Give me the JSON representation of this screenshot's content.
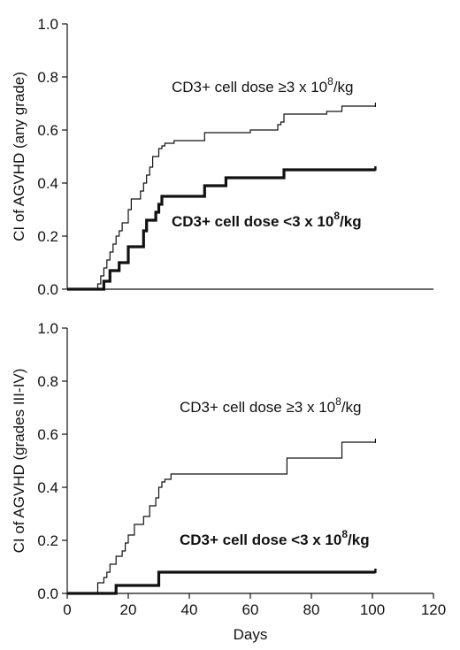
{
  "chart_data": [
    {
      "type": "line",
      "ylabel": "CI of AGVHD (any grade)",
      "xlabel": "",
      "xlim": [
        0,
        120
      ],
      "ylim": [
        0,
        1.0
      ],
      "y_ticks": [
        "0.0",
        "0.2",
        "0.4",
        "0.6",
        "0.8",
        "1.0"
      ],
      "x_ticks": [],
      "x_axis_visible": false,
      "series": [
        {
          "name": "CD3+ cell dose ≥3 x 10⁸/kg",
          "style": "thin",
          "x": [
            0,
            9,
            10,
            11,
            12,
            13,
            14,
            15,
            16,
            17,
            18,
            20,
            21,
            22,
            24,
            25,
            26,
            27,
            28,
            29,
            30,
            31,
            32,
            34,
            35,
            38,
            40,
            45,
            50,
            55,
            60,
            65,
            69,
            70,
            71,
            80,
            85,
            90,
            95,
            101
          ],
          "y": [
            0,
            0,
            0.02,
            0.05,
            0.08,
            0.11,
            0.14,
            0.17,
            0.2,
            0.22,
            0.25,
            0.3,
            0.34,
            0.34,
            0.37,
            0.4,
            0.43,
            0.46,
            0.5,
            0.5,
            0.53,
            0.54,
            0.55,
            0.55,
            0.56,
            0.56,
            0.56,
            0.59,
            0.59,
            0.59,
            0.6,
            0.6,
            0.62,
            0.63,
            0.66,
            0.66,
            0.67,
            0.69,
            0.69,
            0.69
          ]
        },
        {
          "name": "CD3+ cell dose <3 x 10⁸/kg",
          "style": "thick",
          "x": [
            0,
            11,
            12,
            14,
            15,
            17,
            18,
            20,
            22,
            25,
            26,
            29,
            30,
            31,
            33,
            34,
            45,
            52,
            70,
            71,
            101
          ],
          "y": [
            0,
            0,
            0.03,
            0.07,
            0.07,
            0.1,
            0.1,
            0.16,
            0.16,
            0.22,
            0.26,
            0.29,
            0.32,
            0.35,
            0.35,
            0.35,
            0.39,
            0.42,
            0.42,
            0.45,
            0.45
          ]
        }
      ],
      "annotations": [
        {
          "text_parts": [
            "CD3+ cell dose ≥3 x 10",
            "8",
            "/kg"
          ],
          "bold": false
        },
        {
          "text_parts": [
            "CD3+ cell dose <3 x 10",
            "8",
            "/kg"
          ],
          "bold": true
        }
      ]
    },
    {
      "type": "line",
      "ylabel": "CI of AGVHD (grades III-IV)",
      "xlabel": "Days",
      "xlim": [
        0,
        120
      ],
      "ylim": [
        0,
        1.0
      ],
      "y_ticks": [
        "0.0",
        "0.2",
        "0.4",
        "0.6",
        "0.8",
        "1.0"
      ],
      "x_ticks": [
        "0",
        "20",
        "40",
        "60",
        "80",
        "100",
        "120"
      ],
      "x_axis_visible": true,
      "series": [
        {
          "name": "CD3+ cell dose ≥3 x 10⁸/kg",
          "style": "thin",
          "x": [
            0,
            9,
            10,
            11,
            12,
            13,
            14,
            16,
            18,
            19,
            20,
            22,
            23,
            25,
            27,
            29,
            30,
            31,
            32,
            34,
            35,
            71,
            72,
            90,
            101
          ],
          "y": [
            0,
            0,
            0.04,
            0.04,
            0.06,
            0.08,
            0.11,
            0.14,
            0.16,
            0.19,
            0.22,
            0.26,
            0.26,
            0.29,
            0.33,
            0.36,
            0.4,
            0.42,
            0.43,
            0.45,
            0.45,
            0.45,
            0.51,
            0.57,
            0.57
          ]
        },
        {
          "name": "CD3+ cell dose <3 x 10⁸/kg",
          "style": "thick",
          "x": [
            0,
            16,
            30,
            101
          ],
          "y": [
            0,
            0.03,
            0.08,
            0.08
          ]
        }
      ],
      "annotations": [
        {
          "text_parts": [
            "CD3+ cell dose ≥3 x 10",
            "8",
            "/kg"
          ],
          "bold": false
        },
        {
          "text_parts": [
            "CD3+ cell dose <3 x 10",
            "8",
            "/kg"
          ],
          "bold": true
        }
      ]
    }
  ]
}
